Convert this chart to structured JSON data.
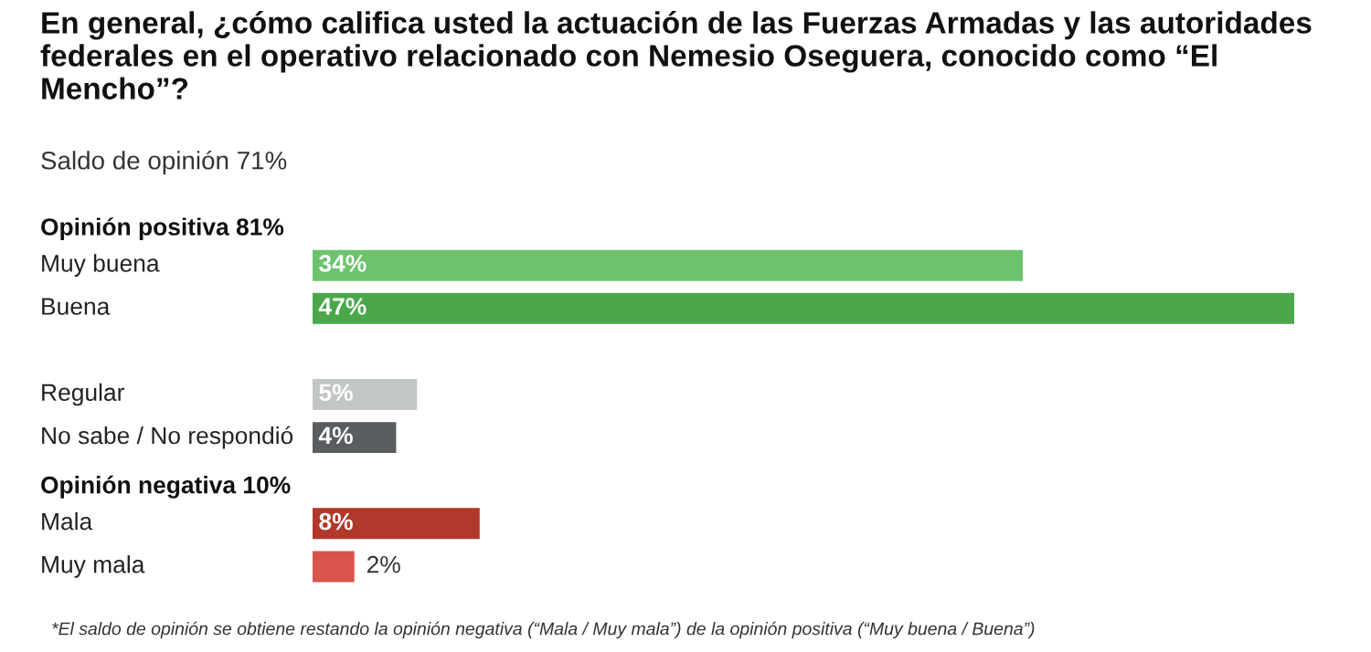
{
  "chart_data": {
    "type": "bar",
    "orientation": "horizontal",
    "title": "En general, ¿cómo califica usted la actuación de las Fuerzas Armadas y las autoridades federales en el operativo relacionado con Nemesio Oseguera, conocido como “El Mencho”?",
    "subtitle": "Saldo de opinión 71%",
    "categories": [
      null,
      "Muy buena",
      "Buena",
      null,
      "Regular",
      "No sabe / No respondió",
      null,
      "Mala",
      "Muy mala"
    ],
    "values": [
      null,
      34,
      47,
      null,
      5,
      4,
      null,
      8,
      2
    ],
    "colors": [
      null,
      "#6cc36c",
      "#4aa84a",
      null,
      "#c3c6c6",
      "#595d5f",
      null,
      "#b0392b",
      "#d9544a"
    ],
    "value_labels": [
      null,
      "34%",
      "47%",
      null,
      "5%",
      "4%",
      null,
      "8%",
      "2%"
    ],
    "xlim": [
      0,
      47
    ],
    "annotations": [
      "Opinión positiva 81%",
      "Opinión negativa 10%",
      "*El saldo de opinión se obtiene restando la opinión negativa (“Mala / Muy mala”) de la opinión positiva (“Muy buena / Buena”)"
    ]
  }
}
